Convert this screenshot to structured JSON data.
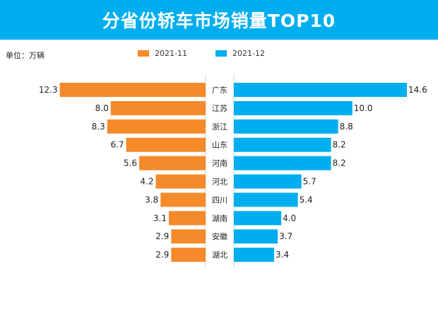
{
  "header": {
    "title": "分省份轿车市场销量TOP10"
  },
  "unit_label": "单位：万辆",
  "colors": {
    "title_bg": "#00AEEF",
    "left_bar": "#F58A2A",
    "right_bar": "#00AEEF"
  },
  "chart_data": {
    "type": "bar",
    "orientation": "horizontal-butterfly",
    "title": "分省份轿车市场销量TOP10",
    "unit": "单位：万辆",
    "categories": [
      "广东",
      "江苏",
      "浙江",
      "山东",
      "河南",
      "河北",
      "四川",
      "湖南",
      "安徽",
      "湖北"
    ],
    "series": [
      {
        "name": "2021-11",
        "side": "left",
        "color": "#F58A2A",
        "values": [
          12.3,
          8.0,
          8.3,
          6.7,
          5.6,
          4.2,
          3.8,
          3.1,
          2.9,
          2.9
        ],
        "labels": [
          "12.3",
          "8.0",
          "8.3",
          "6.7",
          "5.6",
          "4.2",
          "3.8",
          "3.1",
          "2.9",
          "2.9"
        ]
      },
      {
        "name": "2021-12",
        "side": "right",
        "color": "#00AEEF",
        "values": [
          14.6,
          10.0,
          8.8,
          8.2,
          8.2,
          5.7,
          5.4,
          4.0,
          3.7,
          3.4
        ],
        "labels": [
          "14.6",
          "10.0",
          "8.8",
          "8.2",
          "8.2",
          "5.7",
          "5.4",
          "4.0",
          "3.7",
          "3.4"
        ]
      }
    ],
    "legend_position": "top-center",
    "grid": false
  }
}
